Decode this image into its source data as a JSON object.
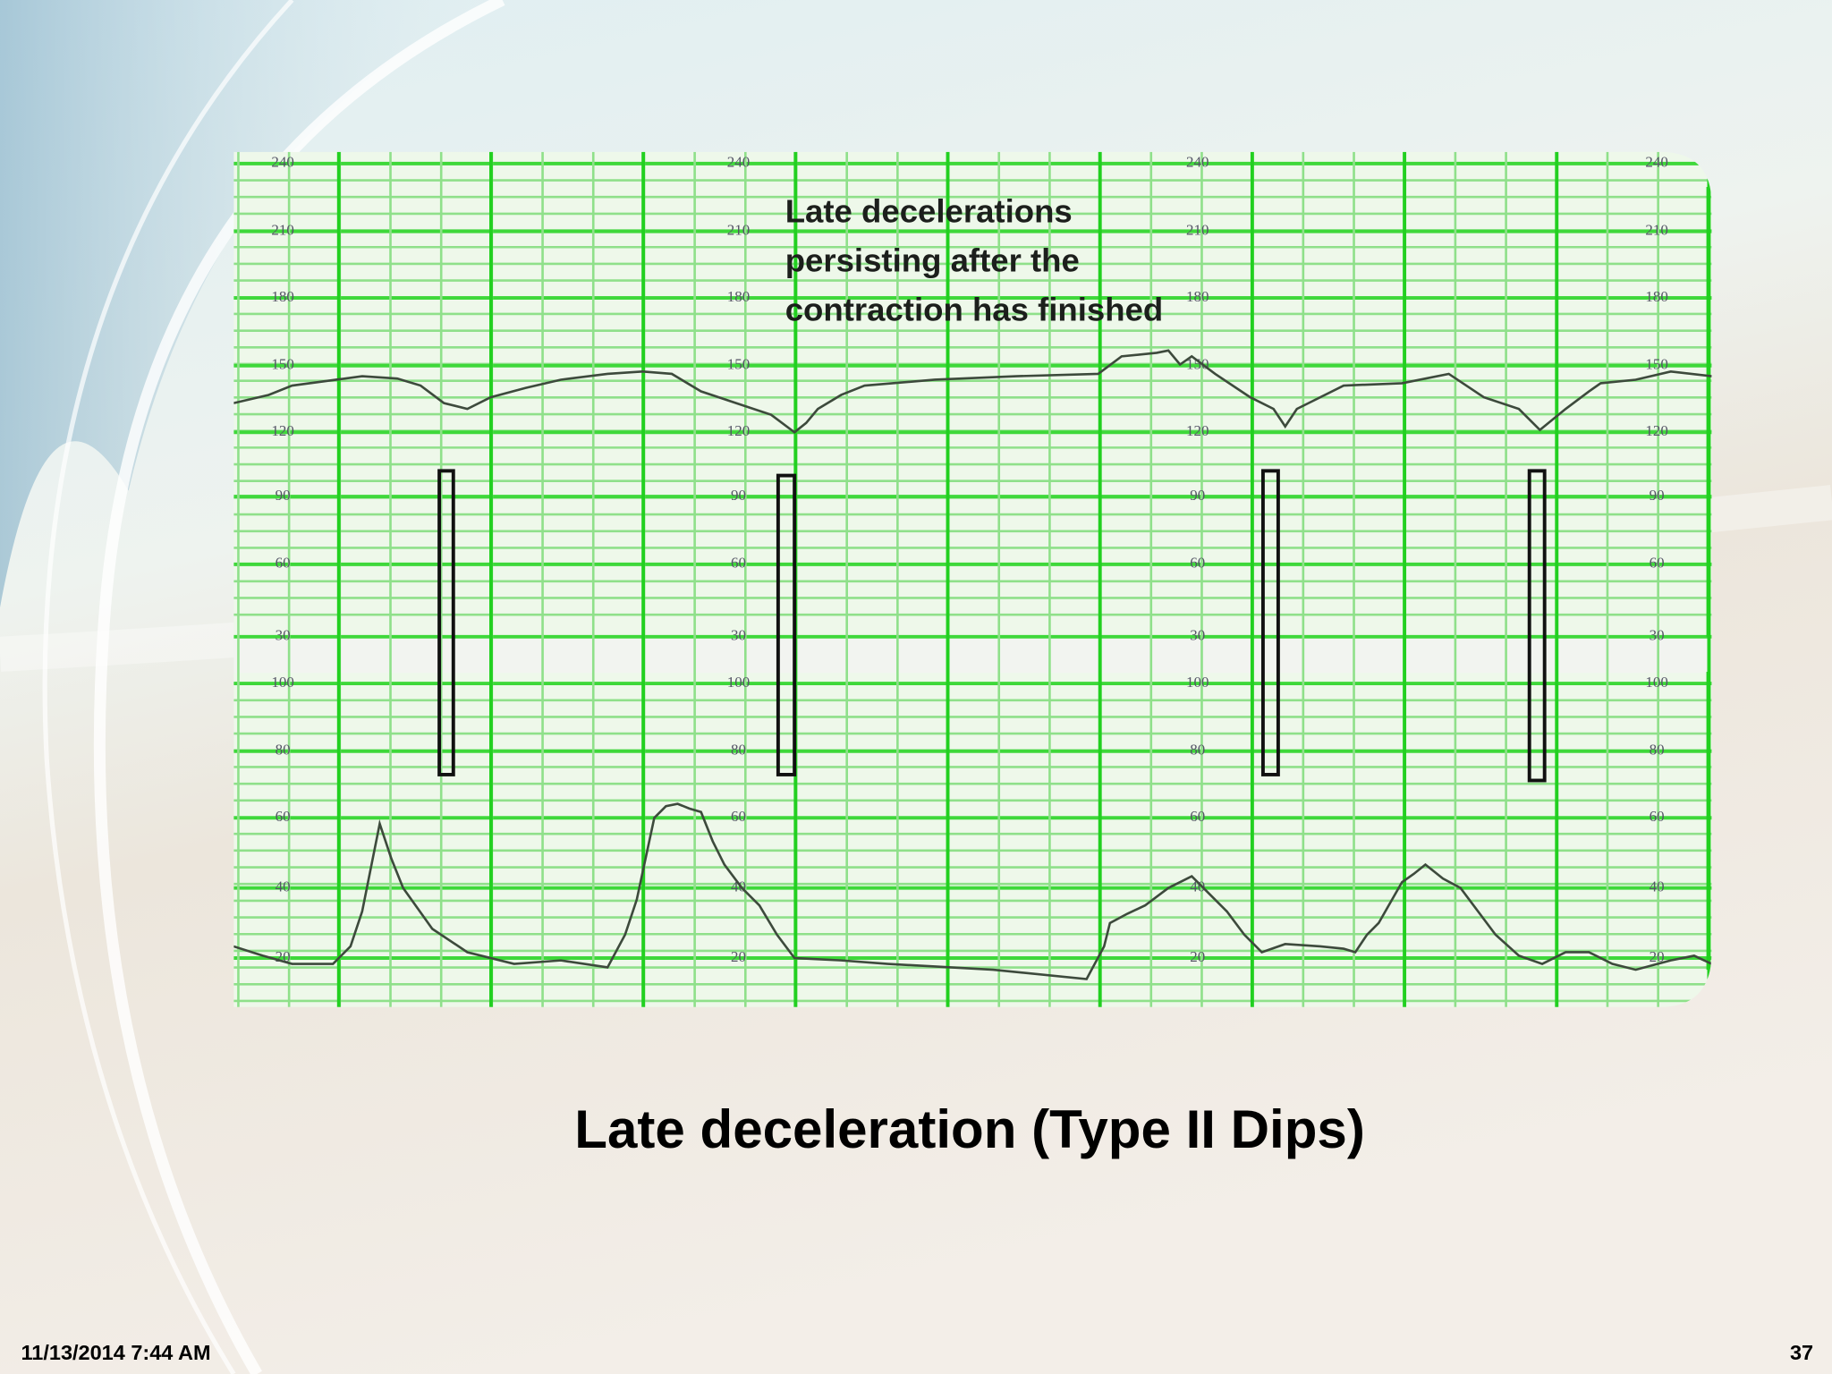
{
  "slide": {
    "title": "Late deceleration (Type II Dips)",
    "date": "11/13/2014 7:44 AM",
    "page_number": 37
  },
  "figure": {
    "annotation": [
      "Late decelerations",
      "persisting after the",
      "contraction has finished"
    ],
    "fhr_scale": [
      "240",
      "210",
      "180",
      "150",
      "120",
      "90",
      "60",
      "30"
    ],
    "toco_scale": [
      "100",
      "80",
      "60",
      "40",
      "20"
    ]
  }
}
